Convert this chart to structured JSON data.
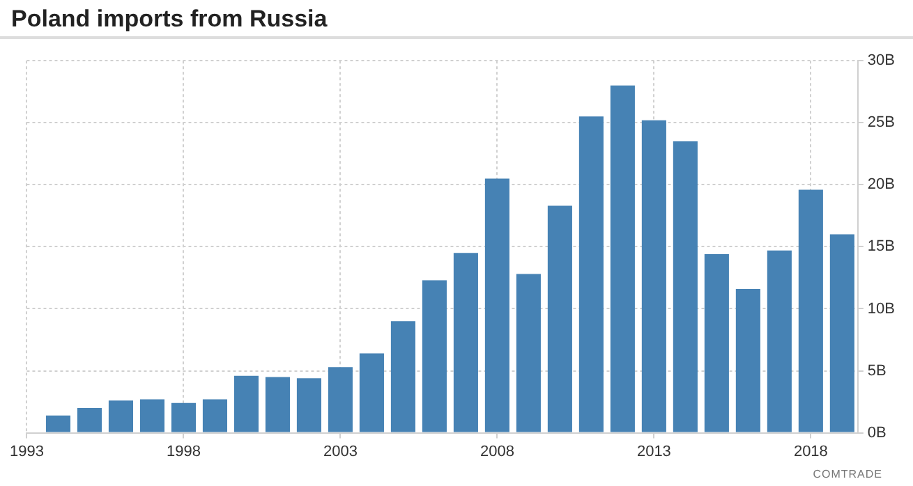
{
  "chart_data": {
    "type": "bar",
    "title": "Poland imports from Russia",
    "x": [
      1994,
      1995,
      1996,
      1997,
      1998,
      1999,
      2000,
      2001,
      2002,
      2003,
      2004,
      2005,
      2006,
      2007,
      2008,
      2009,
      2010,
      2011,
      2012,
      2013,
      2014,
      2015,
      2016,
      2017,
      2018,
      2019
    ],
    "values": [
      1.4,
      2.0,
      2.6,
      2.7,
      2.4,
      2.7,
      4.6,
      4.5,
      4.4,
      5.3,
      6.4,
      9.0,
      12.3,
      14.5,
      20.5,
      12.8,
      18.3,
      25.5,
      28.0,
      25.2,
      23.5,
      14.4,
      11.6,
      14.7,
      19.6,
      16.0
    ],
    "color": "#4682b4",
    "xlim": [
      1993,
      2019.5
    ],
    "xticks": [
      1993,
      1998,
      2003,
      2008,
      2013,
      2018
    ],
    "ylim": [
      0,
      30
    ],
    "yticks": [
      {
        "value": 0,
        "label": "0B"
      },
      {
        "value": 5,
        "label": "5B"
      },
      {
        "value": 10,
        "label": "10B"
      },
      {
        "value": 15,
        "label": "15B"
      },
      {
        "value": 20,
        "label": "20B"
      },
      {
        "value": 25,
        "label": "25B"
      },
      {
        "value": 30,
        "label": "30B"
      }
    ],
    "grid": true,
    "legend": false,
    "annotations": [
      "COMTRADE"
    ]
  }
}
